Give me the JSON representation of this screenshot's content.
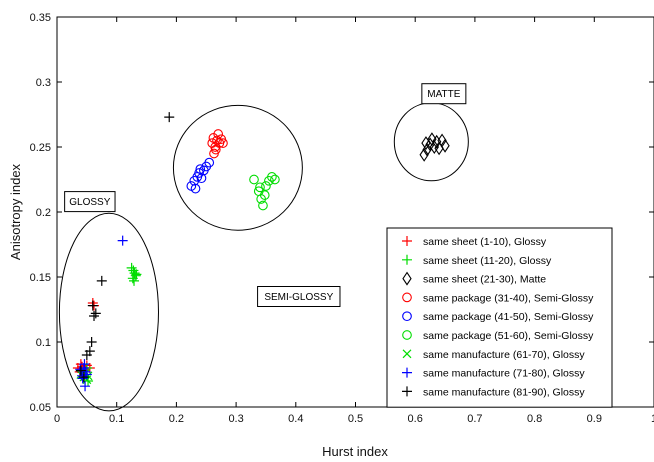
{
  "chart_data": {
    "type": "scatter",
    "xlabel": "Hurst index",
    "ylabel": "Anisotropy index",
    "xlim": [
      0,
      1
    ],
    "ylim": [
      0.05,
      0.35
    ],
    "x_ticks": [
      0,
      0.1,
      0.2,
      0.3,
      0.4,
      0.5,
      0.6,
      0.7,
      0.8,
      0.9,
      1
    ],
    "x_tick_labels": [
      "0",
      "0.1",
      "0.2",
      "0.3",
      "0.4",
      "0.5",
      "0.6",
      "0.7",
      "0.8",
      "0.9",
      "1"
    ],
    "y_ticks": [
      0.05,
      0.1,
      0.15,
      0.2,
      0.25,
      0.3,
      0.35
    ],
    "y_tick_labels": [
      "0.05",
      "0.1",
      "0.15",
      "0.2",
      "0.25",
      "0.3",
      "0.35"
    ],
    "grid": false,
    "legend_position": "bottom-right",
    "annotations": [
      {
        "text": "GLOSSY",
        "x": 0.055,
        "y": 0.208
      },
      {
        "text": "SEMI-GLOSSY",
        "x": 0.405,
        "y": 0.135
      },
      {
        "text": "MATTE",
        "x": 0.648,
        "y": 0.291
      }
    ],
    "ellipses": [
      {
        "label": "glossy-region",
        "cx": 0.087,
        "cy": 0.123,
        "rx": 0.083,
        "ry": 0.076
      },
      {
        "label": "semi-glossy-region",
        "cx": 0.303,
        "cy": 0.234,
        "rx": 0.108,
        "ry": 0.048
      },
      {
        "label": "matte-region",
        "cx": 0.627,
        "cy": 0.254,
        "rx": 0.062,
        "ry": 0.03
      }
    ],
    "series": [
      {
        "name": "same sheet (1-10), Glossy",
        "color": "#ff0000",
        "marker": "plus",
        "points": [
          [
            0.035,
            0.08
          ],
          [
            0.04,
            0.083
          ],
          [
            0.045,
            0.079
          ],
          [
            0.038,
            0.077
          ],
          [
            0.042,
            0.081
          ],
          [
            0.047,
            0.078
          ],
          [
            0.05,
            0.082
          ],
          [
            0.055,
            0.08
          ],
          [
            0.06,
            0.13
          ],
          [
            0.062,
            0.128
          ]
        ]
      },
      {
        "name": "same sheet (11-20), Glossy",
        "color": "#00dd00",
        "marker": "plus",
        "points": [
          [
            0.125,
            0.157
          ],
          [
            0.128,
            0.155
          ],
          [
            0.13,
            0.153
          ],
          [
            0.132,
            0.151
          ],
          [
            0.127,
            0.149
          ],
          [
            0.133,
            0.152
          ],
          [
            0.129,
            0.147
          ],
          [
            0.045,
            0.072
          ],
          [
            0.052,
            0.07
          ],
          [
            0.05,
            0.08
          ]
        ]
      },
      {
        "name": "same sheet (21-30), Matte",
        "color": "#000000",
        "marker": "diamond",
        "points": [
          [
            0.615,
            0.244
          ],
          [
            0.62,
            0.248
          ],
          [
            0.625,
            0.252
          ],
          [
            0.628,
            0.256
          ],
          [
            0.632,
            0.25
          ],
          [
            0.636,
            0.254
          ],
          [
            0.64,
            0.249
          ],
          [
            0.645,
            0.255
          ],
          [
            0.65,
            0.251
          ],
          [
            0.618,
            0.253
          ]
        ]
      },
      {
        "name": "same package (31-40), Semi-Glossy",
        "color": "#ff0000",
        "marker": "circle",
        "points": [
          [
            0.26,
            0.253
          ],
          [
            0.262,
            0.257
          ],
          [
            0.265,
            0.25
          ],
          [
            0.268,
            0.255
          ],
          [
            0.27,
            0.26
          ],
          [
            0.272,
            0.253
          ],
          [
            0.266,
            0.248
          ],
          [
            0.263,
            0.245
          ],
          [
            0.275,
            0.256
          ],
          [
            0.278,
            0.253
          ]
        ]
      },
      {
        "name": "same package (41-50), Semi-Glossy",
        "color": "#0000ff",
        "marker": "circle",
        "points": [
          [
            0.225,
            0.22
          ],
          [
            0.23,
            0.224
          ],
          [
            0.235,
            0.227
          ],
          [
            0.238,
            0.23
          ],
          [
            0.242,
            0.226
          ],
          [
            0.246,
            0.232
          ],
          [
            0.25,
            0.235
          ],
          [
            0.255,
            0.238
          ],
          [
            0.232,
            0.218
          ],
          [
            0.24,
            0.233
          ]
        ]
      },
      {
        "name": "same package (51-60), Semi-Glossy",
        "color": "#00dd00",
        "marker": "circle",
        "points": [
          [
            0.33,
            0.225
          ],
          [
            0.338,
            0.216
          ],
          [
            0.342,
            0.21
          ],
          [
            0.345,
            0.205
          ],
          [
            0.35,
            0.22
          ],
          [
            0.355,
            0.224
          ],
          [
            0.36,
            0.227
          ],
          [
            0.365,
            0.225
          ],
          [
            0.348,
            0.213
          ],
          [
            0.34,
            0.219
          ]
        ]
      },
      {
        "name": "same manufacture (61-70), Glossy",
        "color": "#00dd00",
        "marker": "x",
        "points": [
          [
            0.04,
            0.075
          ],
          [
            0.045,
            0.073
          ],
          [
            0.048,
            0.076
          ],
          [
            0.05,
            0.071
          ],
          [
            0.052,
            0.074
          ]
        ]
      },
      {
        "name": "same manufacture (71-80), Glossy",
        "color": "#0000ff",
        "marker": "plus",
        "points": [
          [
            0.11,
            0.178
          ],
          [
            0.04,
            0.078
          ],
          [
            0.042,
            0.074
          ],
          [
            0.045,
            0.08
          ],
          [
            0.047,
            0.066
          ],
          [
            0.043,
            0.072
          ],
          [
            0.048,
            0.077
          ],
          [
            0.039,
            0.079
          ],
          [
            0.046,
            0.083
          ],
          [
            0.05,
            0.075
          ]
        ]
      },
      {
        "name": "same manufacture (81-90), Glossy",
        "color": "#000000",
        "marker": "plus",
        "points": [
          [
            0.188,
            0.273
          ],
          [
            0.075,
            0.147
          ],
          [
            0.06,
            0.128
          ],
          [
            0.062,
            0.12
          ],
          [
            0.058,
            0.1
          ],
          [
            0.055,
            0.093
          ],
          [
            0.05,
            0.09
          ],
          [
            0.04,
            0.078
          ],
          [
            0.045,
            0.073
          ],
          [
            0.065,
            0.122
          ]
        ]
      }
    ]
  }
}
